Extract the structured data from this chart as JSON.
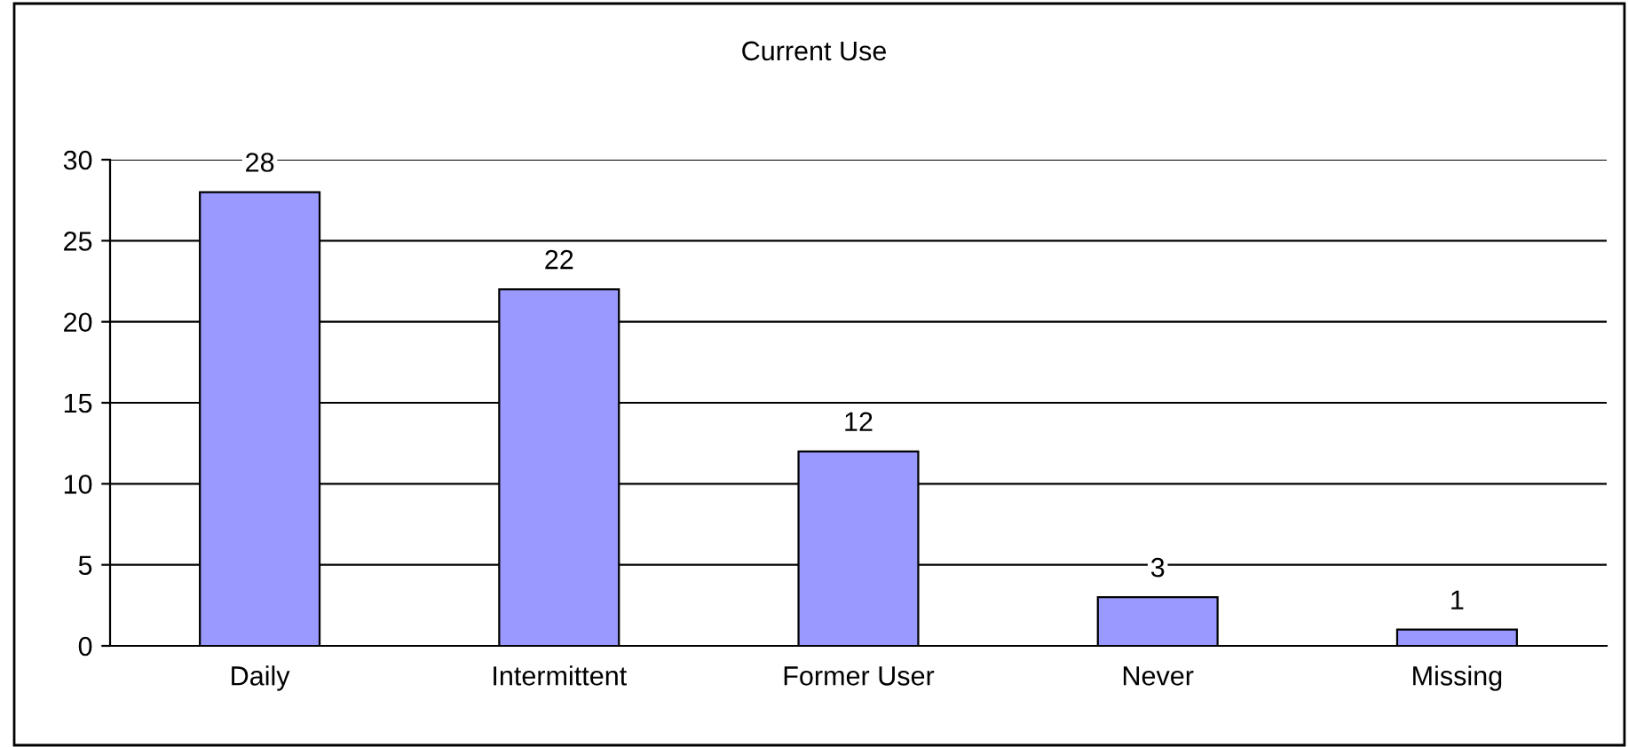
{
  "chart_data": {
    "type": "bar",
    "title": "Current Use",
    "categories": [
      "Daily",
      "Intermittent",
      "Former User",
      "Never",
      "Missing"
    ],
    "values": [
      28,
      22,
      12,
      3,
      1
    ],
    "color": "#9999ff",
    "ylim": [
      0,
      30
    ],
    "yticks": [
      0,
      5,
      10,
      15,
      20,
      25,
      30
    ],
    "grid": "y",
    "data_labels": true
  }
}
